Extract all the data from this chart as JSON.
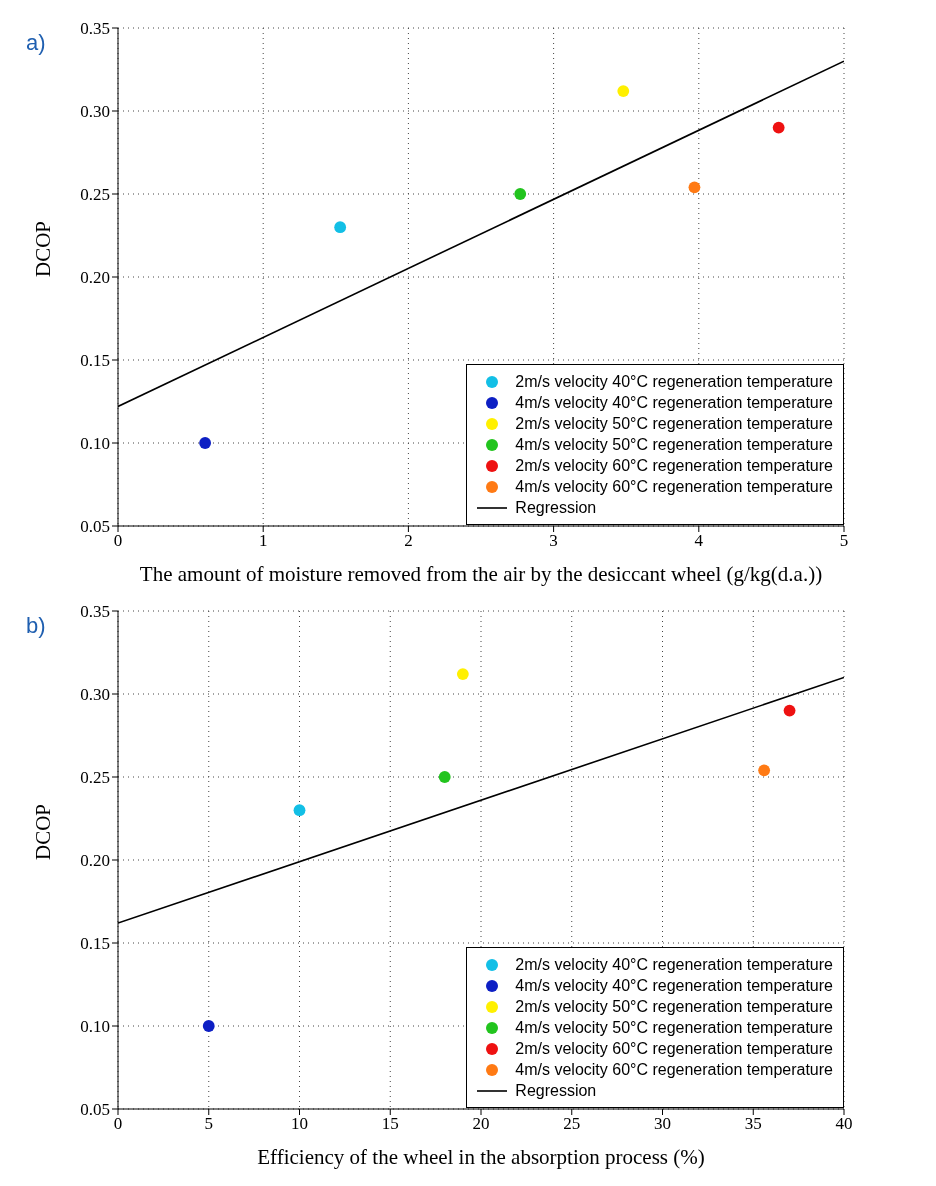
{
  "chart_data": [
    {
      "type": "scatter",
      "annotations": [
        "a)"
      ],
      "xlabel": "The amount of moisture removed from the air by the desiccant wheel (g/kg(d.a.))",
      "ylabel": "DCOP",
      "xlim": [
        0,
        5
      ],
      "xticks": [
        0,
        1,
        2,
        3,
        4,
        5
      ],
      "ylim": [
        0.05,
        0.35
      ],
      "yticks": [
        0.05,
        {
          "value": 0.1,
          "label": "0.10"
        },
        0.15,
        {
          "value": 0.2,
          "label": "0.20"
        },
        0.25,
        {
          "value": 0.3,
          "label": "0.30"
        },
        0.35
      ],
      "grid": true,
      "legend": "bottom right",
      "marker": "circle",
      "series": [
        {
          "name": "2m/s velocity 40°C regeneration temperature",
          "color": "#12bfe6",
          "x": [
            1.53
          ],
          "values": [
            0.23
          ]
        },
        {
          "name": "4m/s velocity 40°C regeneration temperature",
          "color": "#0d1fc4",
          "x": [
            0.6
          ],
          "values": [
            0.1
          ]
        },
        {
          "name": "2m/s velocity 50°C regeneration temperature",
          "color": "#fff000",
          "x": [
            3.48
          ],
          "values": [
            0.312
          ]
        },
        {
          "name": "4m/s velocity 50°C regeneration temperature",
          "color": "#22c41e",
          "x": [
            2.77
          ],
          "values": [
            0.25
          ]
        },
        {
          "name": "2m/s velocity 60°C regeneration temperature",
          "color": "#ee1111",
          "x": [
            4.55
          ],
          "values": [
            0.29
          ]
        },
        {
          "name": "4m/s velocity 60°C regeneration temperature",
          "color": "#ff7a14",
          "x": [
            3.97
          ],
          "values": [
            0.254
          ]
        },
        {
          "name": "Regression",
          "type": "line",
          "marker": "none",
          "color": "#000000",
          "x": [
            0,
            5
          ],
          "values": [
            0.122,
            0.33
          ]
        }
      ]
    },
    {
      "type": "scatter",
      "annotations": [
        "b)"
      ],
      "xlabel": "Efficiency of the wheel in the absorption process (%)",
      "ylabel": "DCOP",
      "xlim": [
        0,
        40
      ],
      "xticks": [
        0,
        5,
        10,
        15,
        20,
        25,
        30,
        35,
        40
      ],
      "ylim": [
        0.05,
        0.35
      ],
      "yticks": [
        0.05,
        {
          "value": 0.1,
          "label": "0.10"
        },
        0.15,
        {
          "value": 0.2,
          "label": "0.20"
        },
        0.25,
        {
          "value": 0.3,
          "label": "0.30"
        },
        0.35
      ],
      "grid": true,
      "legend": "bottom right",
      "marker": "circle",
      "series": [
        {
          "name": "2m/s velocity 40°C regeneration temperature",
          "color": "#12bfe6",
          "x": [
            10
          ],
          "values": [
            0.23
          ]
        },
        {
          "name": "4m/s velocity 40°C regeneration temperature",
          "color": "#0d1fc4",
          "x": [
            5
          ],
          "values": [
            0.1
          ]
        },
        {
          "name": "2m/s velocity 50°C regeneration temperature",
          "color": "#fff000",
          "x": [
            19
          ],
          "values": [
            0.312
          ]
        },
        {
          "name": "4m/s velocity 50°C regeneration temperature",
          "color": "#22c41e",
          "x": [
            18
          ],
          "values": [
            0.25
          ]
        },
        {
          "name": "2m/s velocity 60°C regeneration temperature",
          "color": "#ee1111",
          "x": [
            37
          ],
          "values": [
            0.29
          ]
        },
        {
          "name": "4m/s velocity 60°C regeneration temperature",
          "color": "#ff7a14",
          "x": [
            35.6
          ],
          "values": [
            0.254
          ]
        },
        {
          "name": "Regression",
          "type": "line",
          "marker": "none",
          "color": "#000000",
          "x": [
            0,
            40
          ],
          "values": [
            0.162,
            0.31
          ]
        }
      ]
    }
  ]
}
